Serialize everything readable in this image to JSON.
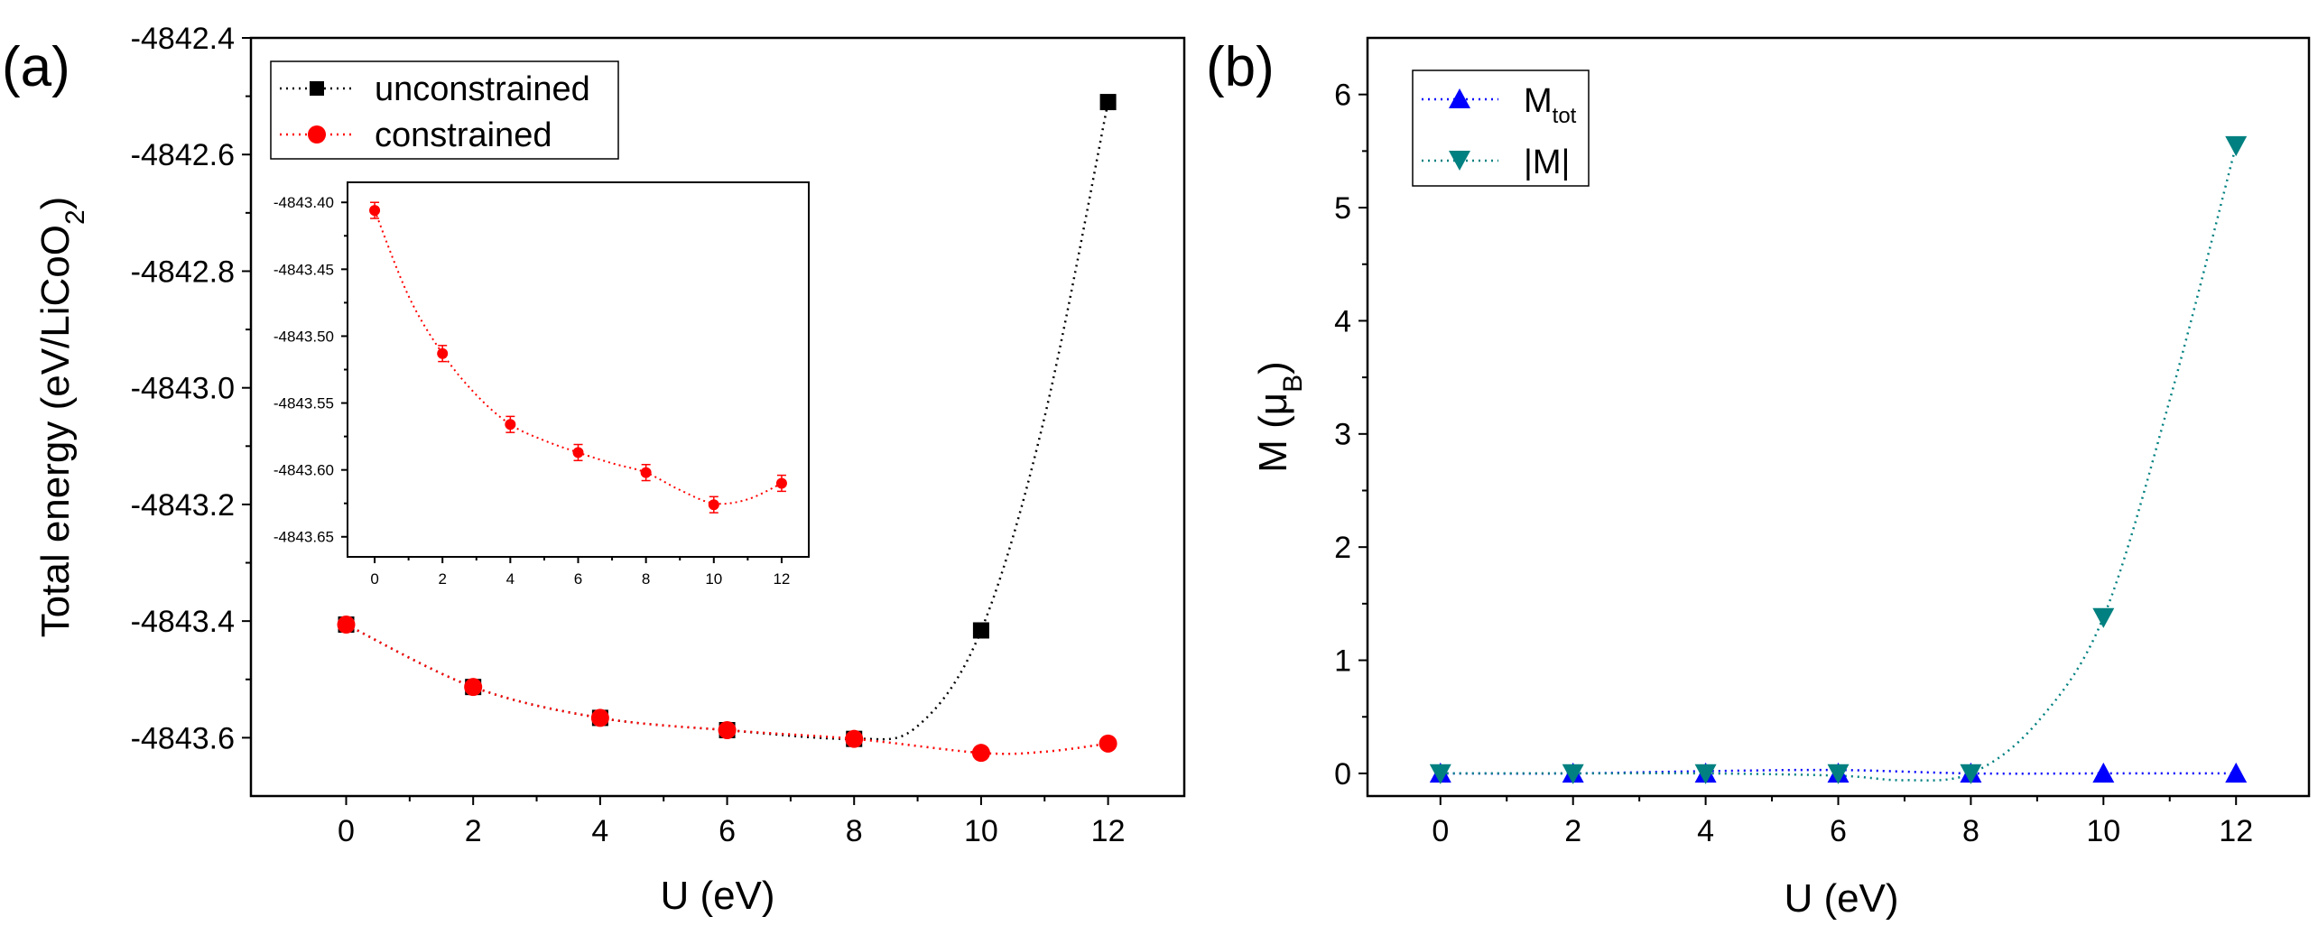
{
  "figure": {
    "panel_a_label": "(a)",
    "panel_b_label": "(b)"
  },
  "chart_data": [
    {
      "type": "line",
      "panel": "(a)",
      "xlabel": "U (eV)",
      "ylabel": "Total energy (eV/LiCoO",
      "ylabel_sub": "2",
      "ylabel_close": ")",
      "xlim": [
        -1.5,
        13.2
      ],
      "ylim": [
        -4843.7,
        -4842.4
      ],
      "xticks": [
        0,
        2,
        4,
        6,
        8,
        10,
        12
      ],
      "xtick_labels": [
        "0",
        "2",
        "4",
        "6",
        "8",
        "10",
        "12"
      ],
      "yticks": [
        -4843.6,
        -4843.4,
        -4843.2,
        -4843.0,
        -4842.8,
        -4842.6,
        -4842.4
      ],
      "ytick_labels": [
        "-4843.6",
        "-4843.4",
        "-4843.2",
        "-4843.0",
        "-4842.8",
        "-4842.6",
        "-4842.4"
      ],
      "grid": false,
      "legend": "top-left",
      "series": [
        {
          "name": "unconstrained",
          "color": "#000000",
          "marker": "square",
          "x": [
            0,
            2,
            4,
            6,
            8,
            10,
            12
          ],
          "y": [
            -4843.406,
            -4843.513,
            -4843.566,
            -4843.587,
            -4843.602,
            -4843.416,
            -4842.51
          ],
          "fit_x": [
            0,
            2,
            4,
            6,
            8,
            9,
            10,
            11,
            12
          ],
          "fit_y": [
            -4843.406,
            -4843.513,
            -4843.566,
            -4843.587,
            -4843.602,
            -4843.58,
            -4843.416,
            -4843.05,
            -4842.51
          ]
        },
        {
          "name": "constrained",
          "color": "#ff0000",
          "marker": "circle",
          "x": [
            0,
            2,
            4,
            6,
            8,
            10,
            12
          ],
          "y": [
            -4843.406,
            -4843.513,
            -4843.566,
            -4843.587,
            -4843.602,
            -4843.626,
            -4843.61
          ],
          "fit_x": [
            0,
            2,
            4,
            6,
            8,
            10,
            11,
            12
          ],
          "fit_y": [
            -4843.406,
            -4843.513,
            -4843.566,
            -4843.587,
            -4843.602,
            -4843.626,
            -4843.624,
            -4843.61
          ]
        }
      ],
      "inset": {
        "type": "scatter",
        "xlim": [
          -0.8,
          12.8
        ],
        "ylim": [
          -4843.665,
          -4843.385
        ],
        "xticks": [
          0,
          2,
          4,
          6,
          8,
          10,
          12
        ],
        "xtick_labels": [
          "0",
          "2",
          "4",
          "6",
          "8",
          "10",
          "12"
        ],
        "yticks": [
          -4843.65,
          -4843.6,
          -4843.55,
          -4843.5,
          -4843.45,
          -4843.4
        ],
        "ytick_labels": [
          "-4843.65",
          "-4843.60",
          "-4843.55",
          "-4843.50",
          "-4843.45",
          "-4843.40"
        ],
        "series": [
          {
            "name": "constrained",
            "color": "#ff0000",
            "x": [
              0,
              2,
              4,
              6,
              8,
              10,
              12
            ],
            "y": [
              -4843.406,
              -4843.513,
              -4843.566,
              -4843.587,
              -4843.602,
              -4843.626,
              -4843.61
            ],
            "err": [
              0.006,
              0.006,
              0.006,
              0.006,
              0.006,
              0.006,
              0.006
            ],
            "fit_x": [
              0,
              1,
              2,
              3,
              4,
              5,
              6,
              7,
              8,
              9,
              10,
              11,
              12
            ],
            "fit_y": [
              -4843.406,
              -4843.47,
              -4843.513,
              -4843.544,
              -4843.566,
              -4843.578,
              -4843.587,
              -4843.595,
              -4843.602,
              -4843.615,
              -4843.625,
              -4843.622,
              -4843.61
            ]
          }
        ]
      }
    },
    {
      "type": "line",
      "panel": "(b)",
      "xlabel": "U (eV)",
      "ylabel": "M (μ",
      "ylabel_sub": "B",
      "ylabel_close": ")",
      "xlim": [
        -1.1,
        13.1
      ],
      "ylim": [
        -0.2,
        6.5
      ],
      "xticks": [
        0,
        2,
        4,
        6,
        8,
        10,
        12
      ],
      "xtick_labels": [
        "0",
        "2",
        "4",
        "6",
        "8",
        "10",
        "12"
      ],
      "yticks": [
        0,
        1,
        2,
        3,
        4,
        5,
        6
      ],
      "ytick_labels": [
        "0",
        "1",
        "2",
        "3",
        "4",
        "5",
        "6"
      ],
      "grid": false,
      "legend": "top-left",
      "series": [
        {
          "name": "M",
          "name_sub": "tot",
          "color": "#0000ff",
          "marker": "triangle-up",
          "x": [
            0,
            2,
            4,
            6,
            8,
            10,
            12
          ],
          "y": [
            0,
            0,
            0,
            0,
            0,
            0,
            0
          ],
          "fit_x": [
            0,
            2,
            4,
            6,
            8,
            10,
            12
          ],
          "fit_y": [
            0,
            0,
            0.02,
            0.03,
            0,
            0,
            0
          ]
        },
        {
          "name": "|M|",
          "color": "#008080",
          "marker": "triangle-down",
          "x": [
            0,
            2,
            4,
            6,
            8,
            10,
            12
          ],
          "y": [
            0,
            0,
            0,
            0,
            0,
            1.38,
            5.55
          ],
          "fit_x": [
            0,
            2,
            4,
            6,
            7,
            8,
            9,
            10,
            11,
            12
          ],
          "fit_y": [
            0,
            0,
            0,
            -0.02,
            -0.06,
            0,
            0.45,
            1.38,
            3.3,
            5.55
          ]
        }
      ]
    }
  ]
}
